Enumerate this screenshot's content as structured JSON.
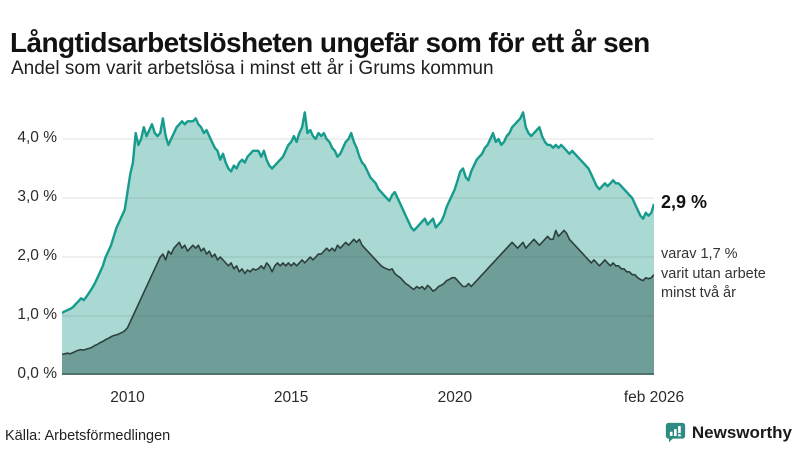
{
  "header": {
    "title": "Långtidsarbetslösheten ungefär som för ett år sen",
    "subtitle": "Andel som varit arbetslösa i minst ett år i Grums kommun"
  },
  "annotations": {
    "primary_value": "2,9 %",
    "secondary_text": "varav 1,7 %\nvarit utan arbete\nminst två år"
  },
  "footer": {
    "source": "Källa: Arbetsförmedlingen",
    "brand_name": "Newsworthy"
  },
  "colors": {
    "line_1yr": "#169b8d",
    "fill_1yr": "#a9d9d2",
    "line_2yr": "#2e403d",
    "fill_2yr": "#6f9e99",
    "gridline": "rgba(40,40,40,0.14)",
    "zeroline": "rgba(0,0,0,0.28)",
    "brand_teal": "#2e8c85"
  },
  "chart_data": {
    "type": "area",
    "title": "Långtidsarbetslösheten ungefär som för ett år sen",
    "subtitle": "Andel som varit arbetslösa i minst ett år i Grums kommun",
    "x_interval": "monthly",
    "x_start": "2008-01",
    "x_end": "2026-02",
    "x_domain": [
      2008.0,
      2026.0833
    ],
    "ylim": [
      0,
      4.73
    ],
    "grid": true,
    "x_ticks": [
      {
        "label": "2010",
        "t": 2010.0
      },
      {
        "label": "2015",
        "t": 2015.0
      },
      {
        "label": "2020",
        "t": 2020.0
      },
      {
        "label": "feb 2026",
        "t": 2026.0833
      }
    ],
    "y_ticks": [
      {
        "label": "0,0 %",
        "value": 0
      },
      {
        "label": "1,0 %",
        "value": 1
      },
      {
        "label": "2,0 %",
        "value": 2
      },
      {
        "label": "3,0 %",
        "value": 3
      },
      {
        "label": "4,0 %",
        "value": 4
      }
    ],
    "series": [
      {
        "name": "Arbetslösa minst ett år",
        "last_value_label": "2,9 %",
        "values": [
          1.05,
          1.08,
          1.1,
          1.12,
          1.15,
          1.2,
          1.25,
          1.3,
          1.27,
          1.33,
          1.4,
          1.47,
          1.55,
          1.65,
          1.75,
          1.85,
          2.0,
          2.1,
          2.2,
          2.35,
          2.5,
          2.6,
          2.7,
          2.8,
          3.1,
          3.4,
          3.6,
          4.1,
          3.9,
          4.0,
          4.2,
          4.05,
          4.15,
          4.25,
          4.1,
          4.05,
          4.1,
          4.35,
          4.05,
          3.9,
          4.0,
          4.1,
          4.2,
          4.25,
          4.3,
          4.25,
          4.3,
          4.3,
          4.3,
          4.35,
          4.25,
          4.2,
          4.1,
          4.15,
          4.05,
          3.95,
          3.85,
          3.8,
          3.65,
          3.75,
          3.6,
          3.5,
          3.45,
          3.55,
          3.5,
          3.6,
          3.65,
          3.6,
          3.7,
          3.75,
          3.8,
          3.8,
          3.8,
          3.7,
          3.8,
          3.65,
          3.55,
          3.5,
          3.55,
          3.6,
          3.65,
          3.7,
          3.8,
          3.9,
          3.95,
          4.05,
          3.95,
          4.1,
          4.2,
          4.45,
          4.1,
          4.15,
          4.05,
          4.0,
          4.1,
          4.05,
          4.1,
          4.0,
          3.95,
          3.85,
          3.8,
          3.7,
          3.75,
          3.85,
          3.95,
          4.0,
          4.1,
          3.95,
          3.85,
          3.7,
          3.6,
          3.55,
          3.45,
          3.35,
          3.3,
          3.25,
          3.15,
          3.1,
          3.05,
          3.0,
          2.95,
          3.05,
          3.1,
          3.0,
          2.9,
          2.8,
          2.7,
          2.6,
          2.5,
          2.45,
          2.5,
          2.55,
          2.6,
          2.65,
          2.55,
          2.6,
          2.65,
          2.5,
          2.55,
          2.6,
          2.7,
          2.85,
          2.95,
          3.05,
          3.15,
          3.3,
          3.45,
          3.5,
          3.35,
          3.3,
          3.45,
          3.55,
          3.65,
          3.7,
          3.75,
          3.85,
          3.9,
          4.0,
          4.1,
          3.95,
          4.0,
          3.9,
          3.95,
          4.05,
          4.1,
          4.2,
          4.25,
          4.3,
          4.35,
          4.45,
          4.2,
          4.1,
          4.05,
          4.1,
          4.15,
          4.2,
          4.05,
          3.95,
          3.9,
          3.9,
          3.85,
          3.9,
          3.85,
          3.9,
          3.85,
          3.8,
          3.75,
          3.8,
          3.75,
          3.7,
          3.65,
          3.6,
          3.55,
          3.5,
          3.4,
          3.3,
          3.2,
          3.15,
          3.2,
          3.25,
          3.2,
          3.25,
          3.3,
          3.25,
          3.25,
          3.2,
          3.15,
          3.1,
          3.05,
          3.0,
          2.9,
          2.8,
          2.7,
          2.65,
          2.75,
          2.7,
          2.75,
          2.9
        ]
      },
      {
        "name": "Arbetslösa minst två år",
        "last_value_label": "1,7 %",
        "values": [
          0.35,
          0.36,
          0.37,
          0.36,
          0.38,
          0.4,
          0.42,
          0.43,
          0.42,
          0.44,
          0.45,
          0.47,
          0.5,
          0.52,
          0.55,
          0.57,
          0.6,
          0.62,
          0.65,
          0.67,
          0.68,
          0.7,
          0.72,
          0.75,
          0.8,
          0.9,
          1.0,
          1.1,
          1.2,
          1.3,
          1.4,
          1.5,
          1.6,
          1.7,
          1.8,
          1.9,
          2.0,
          2.05,
          1.95,
          2.1,
          2.05,
          2.15,
          2.2,
          2.25,
          2.15,
          2.2,
          2.1,
          2.15,
          2.2,
          2.15,
          2.2,
          2.1,
          2.15,
          2.05,
          2.1,
          2.0,
          2.05,
          1.95,
          2.0,
          1.95,
          1.9,
          1.85,
          1.9,
          1.8,
          1.85,
          1.75,
          1.8,
          1.72,
          1.78,
          1.75,
          1.8,
          1.78,
          1.8,
          1.85,
          1.8,
          1.9,
          1.85,
          1.75,
          1.85,
          1.9,
          1.85,
          1.9,
          1.85,
          1.9,
          1.85,
          1.9,
          1.85,
          1.9,
          1.95,
          1.9,
          1.95,
          2.0,
          1.95,
          2.0,
          2.05,
          2.05,
          2.1,
          2.15,
          2.1,
          2.15,
          2.1,
          2.2,
          2.15,
          2.2,
          2.25,
          2.2,
          2.25,
          2.3,
          2.25,
          2.3,
          2.2,
          2.15,
          2.1,
          2.05,
          2.0,
          1.95,
          1.9,
          1.85,
          1.82,
          1.8,
          1.78,
          1.8,
          1.72,
          1.68,
          1.65,
          1.6,
          1.55,
          1.52,
          1.48,
          1.45,
          1.5,
          1.47,
          1.5,
          1.45,
          1.52,
          1.48,
          1.42,
          1.45,
          1.5,
          1.52,
          1.55,
          1.6,
          1.62,
          1.65,
          1.65,
          1.6,
          1.55,
          1.5,
          1.5,
          1.55,
          1.5,
          1.55,
          1.6,
          1.65,
          1.7,
          1.75,
          1.8,
          1.85,
          1.9,
          1.95,
          2.0,
          2.05,
          2.1,
          2.15,
          2.2,
          2.25,
          2.2,
          2.15,
          2.2,
          2.25,
          2.15,
          2.2,
          2.25,
          2.3,
          2.25,
          2.2,
          2.25,
          2.3,
          2.35,
          2.3,
          2.3,
          2.45,
          2.35,
          2.4,
          2.45,
          2.4,
          2.3,
          2.25,
          2.2,
          2.15,
          2.1,
          2.05,
          2.0,
          1.95,
          1.9,
          1.95,
          1.9,
          1.85,
          1.9,
          1.95,
          1.9,
          1.85,
          1.9,
          1.85,
          1.85,
          1.8,
          1.8,
          1.75,
          1.75,
          1.7,
          1.7,
          1.65,
          1.62,
          1.6,
          1.65,
          1.63,
          1.65,
          1.7
        ]
      }
    ]
  }
}
